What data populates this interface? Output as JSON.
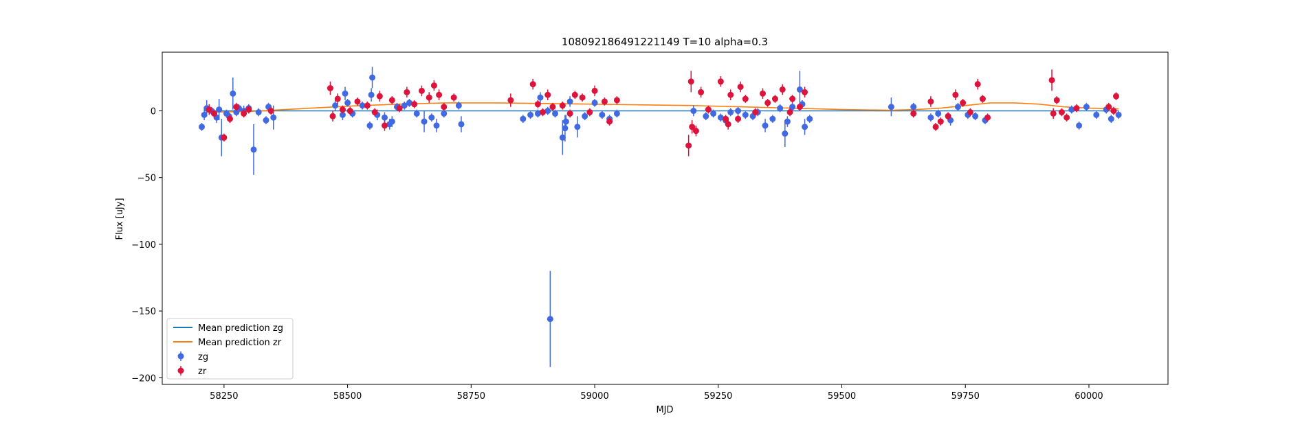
{
  "chart_data": {
    "type": "scatter",
    "title": "108092186491221149 T=10 alpha=0.3",
    "xlabel": "MJD",
    "ylabel": "Flux [uJy]",
    "xlim": [
      58125,
      60160
    ],
    "ylim": [
      -205,
      44
    ],
    "xticks": [
      58250,
      58500,
      58750,
      59000,
      59250,
      59500,
      59750,
      60000
    ],
    "yticks": [
      0,
      -50,
      -100,
      -150,
      -200
    ],
    "grid": false,
    "legend_position": "lower-left",
    "legend": [
      "Mean prediction zg",
      "Mean prediction zr",
      "zg",
      "zr"
    ],
    "colors": {
      "zg_points": "#4169e1",
      "zr_points": "#dc143c",
      "zg_line": "#1f77b4",
      "zr_line": "#ff7f0e"
    },
    "lines": [
      {
        "name": "Mean prediction zg",
        "color": "#1f77b4",
        "x": [
          58210,
          58500,
          58750,
          59000,
          59250,
          59500,
          59750,
          60000,
          60060
        ],
        "y": [
          0,
          0,
          0,
          0,
          0,
          0,
          0,
          0,
          0
        ]
      },
      {
        "name": "Mean prediction zr",
        "color": "#ff7f0e",
        "x": [
          58210,
          58300,
          58400,
          58500,
          58600,
          58700,
          58800,
          58900,
          59000,
          59100,
          59200,
          59300,
          59400,
          59500,
          59600,
          59650,
          59700,
          59750,
          59800,
          59850,
          59900,
          59950,
          60000,
          60060
        ],
        "y": [
          -1,
          -0.5,
          1.5,
          3.5,
          5,
          6,
          6,
          5.5,
          5,
          4.5,
          4,
          3,
          2,
          1,
          0.5,
          1,
          2,
          4,
          6,
          6,
          5,
          3,
          2,
          1.5
        ]
      }
    ],
    "series": [
      {
        "name": "zg",
        "color": "#4169e1",
        "points": [
          [
            58205,
            -12,
            3
          ],
          [
            58210,
            -3,
            4
          ],
          [
            58215,
            2,
            6
          ],
          [
            58225,
            0,
            3
          ],
          [
            58235,
            -5,
            4
          ],
          [
            58240,
            1,
            8
          ],
          [
            58245,
            -20,
            14
          ],
          [
            58255,
            -2,
            3
          ],
          [
            58260,
            -4,
            3
          ],
          [
            58268,
            13,
            12
          ],
          [
            58275,
            -1,
            3
          ],
          [
            58280,
            2,
            3
          ],
          [
            58290,
            0,
            4
          ],
          [
            58300,
            2,
            3
          ],
          [
            58310,
            -29,
            19
          ],
          [
            58320,
            -1,
            3
          ],
          [
            58335,
            -7,
            3
          ],
          [
            58340,
            3,
            3
          ],
          [
            58350,
            -5,
            9
          ],
          [
            58475,
            4,
            4
          ],
          [
            58490,
            -3,
            4
          ],
          [
            58495,
            13,
            5
          ],
          [
            58500,
            6,
            3
          ],
          [
            58510,
            -2,
            3
          ],
          [
            58530,
            4,
            3
          ],
          [
            58545,
            -11,
            3
          ],
          [
            58548,
            12,
            5
          ],
          [
            58550,
            25,
            8
          ],
          [
            58560,
            -3,
            4
          ],
          [
            58575,
            -5,
            4
          ],
          [
            58585,
            -10,
            4
          ],
          [
            58590,
            -8,
            4
          ],
          [
            58600,
            3,
            3
          ],
          [
            58615,
            4,
            3
          ],
          [
            58625,
            6,
            3
          ],
          [
            58640,
            -2,
            3
          ],
          [
            58655,
            -8,
            8
          ],
          [
            58670,
            -5,
            3
          ],
          [
            58680,
            -11,
            5
          ],
          [
            58695,
            -2,
            3
          ],
          [
            58725,
            4,
            3
          ],
          [
            58730,
            -10,
            6
          ],
          [
            58855,
            -6,
            3
          ],
          [
            58870,
            -3,
            3
          ],
          [
            58885,
            -2,
            3
          ],
          [
            58890,
            10,
            4
          ],
          [
            58905,
            0,
            3
          ],
          [
            58910,
            -156,
            36
          ],
          [
            58920,
            -2,
            3
          ],
          [
            58935,
            -20,
            13
          ],
          [
            58940,
            -13,
            10
          ],
          [
            58942,
            -8,
            5
          ],
          [
            58950,
            7,
            4
          ],
          [
            58965,
            -12,
            8
          ],
          [
            58980,
            -4,
            3
          ],
          [
            59000,
            6,
            3
          ],
          [
            59015,
            -3,
            3
          ],
          [
            59030,
            -6,
            3
          ],
          [
            59045,
            -2,
            3
          ],
          [
            59200,
            0,
            4
          ],
          [
            59225,
            -4,
            3
          ],
          [
            59240,
            -2,
            3
          ],
          [
            59255,
            -5,
            3
          ],
          [
            59265,
            -7,
            3
          ],
          [
            59275,
            -1,
            3
          ],
          [
            59290,
            0,
            3
          ],
          [
            59305,
            -3,
            3
          ],
          [
            59320,
            -4,
            3
          ],
          [
            59330,
            -1,
            3
          ],
          [
            59345,
            -11,
            5
          ],
          [
            59360,
            -6,
            3
          ],
          [
            59375,
            2,
            3
          ],
          [
            59385,
            -17,
            10
          ],
          [
            59390,
            -8,
            4
          ],
          [
            59400,
            3,
            3
          ],
          [
            59415,
            16,
            14
          ],
          [
            59420,
            5,
            3
          ],
          [
            59425,
            -12,
            6
          ],
          [
            59435,
            -6,
            3
          ],
          [
            59600,
            3,
            7
          ],
          [
            59645,
            3,
            3
          ],
          [
            59680,
            -5,
            3
          ],
          [
            59695,
            -2,
            3
          ],
          [
            59720,
            -7,
            4
          ],
          [
            59735,
            3,
            3
          ],
          [
            59755,
            -3,
            3
          ],
          [
            59770,
            -4,
            3
          ],
          [
            59790,
            -7,
            3
          ],
          [
            59965,
            1,
            3
          ],
          [
            59980,
            -11,
            3
          ],
          [
            59995,
            3,
            3
          ],
          [
            60015,
            -3,
            3
          ],
          [
            60035,
            1,
            3
          ],
          [
            60045,
            -6,
            3
          ],
          [
            60060,
            -3,
            3
          ]
        ]
      },
      {
        "name": "zr",
        "color": "#dc143c",
        "points": [
          [
            58220,
            1,
            4
          ],
          [
            58230,
            -2,
            3
          ],
          [
            58250,
            -20,
            3
          ],
          [
            58262,
            -6,
            3
          ],
          [
            58275,
            3,
            3
          ],
          [
            58290,
            -2,
            3
          ],
          [
            58300,
            1,
            3
          ],
          [
            58345,
            0,
            3
          ],
          [
            58465,
            17,
            5
          ],
          [
            58470,
            -4,
            4
          ],
          [
            58480,
            9,
            4
          ],
          [
            58490,
            1,
            3
          ],
          [
            58505,
            0,
            3
          ],
          [
            58520,
            7,
            3
          ],
          [
            58540,
            4,
            3
          ],
          [
            58555,
            -1,
            3
          ],
          [
            58565,
            11,
            4
          ],
          [
            58575,
            -11,
            4
          ],
          [
            58590,
            8,
            3
          ],
          [
            58605,
            2,
            3
          ],
          [
            58620,
            14,
            4
          ],
          [
            58635,
            5,
            3
          ],
          [
            58650,
            15,
            4
          ],
          [
            58665,
            10,
            4
          ],
          [
            58675,
            19,
            4
          ],
          [
            58685,
            12,
            4
          ],
          [
            58695,
            3,
            3
          ],
          [
            58715,
            10,
            3
          ],
          [
            58830,
            8,
            5
          ],
          [
            58875,
            20,
            4
          ],
          [
            58885,
            5,
            3
          ],
          [
            58895,
            -1,
            3
          ],
          [
            58905,
            12,
            4
          ],
          [
            58915,
            3,
            3
          ],
          [
            58935,
            4,
            3
          ],
          [
            58950,
            -2,
            3
          ],
          [
            58960,
            12,
            3
          ],
          [
            58975,
            10,
            3
          ],
          [
            58990,
            -1,
            3
          ],
          [
            59000,
            15,
            4
          ],
          [
            59020,
            7,
            3
          ],
          [
            59030,
            -8,
            3
          ],
          [
            59045,
            8,
            3
          ],
          [
            59190,
            -26,
            8
          ],
          [
            59195,
            22,
            8
          ],
          [
            59197,
            -12,
            5
          ],
          [
            59205,
            -15,
            4
          ],
          [
            59215,
            14,
            4
          ],
          [
            59230,
            1,
            3
          ],
          [
            59255,
            22,
            4
          ],
          [
            59265,
            -6,
            3
          ],
          [
            59270,
            -10,
            4
          ],
          [
            59275,
            12,
            4
          ],
          [
            59290,
            -6,
            3
          ],
          [
            59295,
            18,
            4
          ],
          [
            59305,
            9,
            3
          ],
          [
            59325,
            -1,
            3
          ],
          [
            59340,
            13,
            4
          ],
          [
            59350,
            6,
            3
          ],
          [
            59365,
            9,
            3
          ],
          [
            59380,
            16,
            4
          ],
          [
            59395,
            -1,
            3
          ],
          [
            59400,
            9,
            3
          ],
          [
            59415,
            3,
            3
          ],
          [
            59425,
            14,
            4
          ],
          [
            59645,
            -2,
            3
          ],
          [
            59680,
            7,
            4
          ],
          [
            59690,
            -12,
            3
          ],
          [
            59700,
            -8,
            3
          ],
          [
            59715,
            -4,
            3
          ],
          [
            59730,
            12,
            4
          ],
          [
            59745,
            6,
            3
          ],
          [
            59760,
            -1,
            3
          ],
          [
            59775,
            20,
            4
          ],
          [
            59785,
            9,
            3
          ],
          [
            59795,
            -5,
            3
          ],
          [
            59925,
            23,
            8
          ],
          [
            59928,
            -2,
            4
          ],
          [
            59935,
            8,
            3
          ],
          [
            59945,
            -1,
            3
          ],
          [
            59955,
            -5,
            3
          ],
          [
            59975,
            2,
            3
          ],
          [
            60040,
            3,
            3
          ],
          [
            60050,
            0,
            3
          ],
          [
            60055,
            11,
            3
          ]
        ]
      }
    ]
  }
}
